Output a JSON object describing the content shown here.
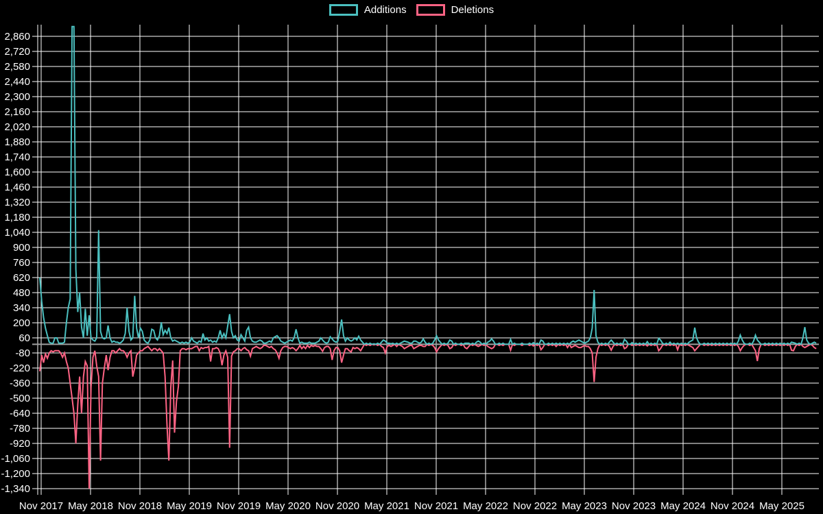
{
  "chart_data": {
    "type": "line",
    "title": "",
    "legend": [
      {
        "label": "Additions",
        "color": "#4bc0c0"
      },
      {
        "label": "Deletions",
        "color": "#ff6384"
      }
    ],
    "background_color": "#000000",
    "grid_color": "#ffffff",
    "zero_line_color": "#a0a0a0",
    "text_color": "#ffffff",
    "y_axis": {
      "min": -1340,
      "max": 2860,
      "step": 140
    },
    "y_tick_labels": [
      "2,860",
      "2,720",
      "2,580",
      "2,440",
      "2,300",
      "2,160",
      "2,020",
      "1,880",
      "1,740",
      "1,600",
      "1,460",
      "1,320",
      "1,180",
      "1,040",
      "900",
      "760",
      "620",
      "480",
      "340",
      "200",
      "60",
      "-80",
      "-220",
      "-360",
      "-500",
      "-640",
      "-780",
      "-920",
      "-1,060",
      "-1,200",
      "-1,340"
    ],
    "x_tick_labels": [
      "Nov 2017",
      "May 2018",
      "Nov 2018",
      "May 2019",
      "Nov 2019",
      "May 2020",
      "Nov 2020",
      "May 2021",
      "Nov 2021",
      "May 2022",
      "Nov 2022",
      "May 2023",
      "Nov 2023",
      "May 2024",
      "Nov 2024",
      "May 2025"
    ],
    "x_unit": "week",
    "weeks_total": 410,
    "points_format": "[week_index, additions, deletions]",
    "points": [
      [
        0,
        620,
        -250
      ],
      [
        1,
        400,
        -100
      ],
      [
        2,
        250,
        -170
      ],
      [
        3,
        150,
        -90
      ],
      [
        4,
        80,
        -130
      ],
      [
        5,
        20,
        -80
      ],
      [
        6,
        10,
        -60
      ],
      [
        7,
        10,
        -70
      ],
      [
        8,
        60,
        -60
      ],
      [
        9,
        60,
        -60
      ],
      [
        10,
        10,
        -60
      ],
      [
        11,
        10,
        -80
      ],
      [
        12,
        10,
        -120
      ],
      [
        13,
        20,
        -80
      ],
      [
        14,
        200,
        -160
      ],
      [
        15,
        340,
        -220
      ],
      [
        16,
        420,
        -360
      ],
      [
        17,
        2950,
        -500
      ],
      [
        18,
        2950,
        -640
      ],
      [
        19,
        700,
        -920
      ],
      [
        20,
        300,
        -560
      ],
      [
        21,
        480,
        -300
      ],
      [
        22,
        160,
        -640
      ],
      [
        23,
        60,
        -300
      ],
      [
        24,
        330,
        -160
      ],
      [
        25,
        80,
        -200
      ],
      [
        26,
        270,
        -1340
      ],
      [
        27,
        60,
        -400
      ],
      [
        28,
        40,
        -120
      ],
      [
        29,
        30,
        -60
      ],
      [
        30,
        60,
        -200
      ],
      [
        31,
        1060,
        -300
      ],
      [
        32,
        120,
        -1080
      ],
      [
        33,
        60,
        -360
      ],
      [
        34,
        50,
        -220
      ],
      [
        35,
        60,
        -100
      ],
      [
        36,
        175,
        -240
      ],
      [
        37,
        60,
        -120
      ],
      [
        38,
        20,
        -60
      ],
      [
        39,
        30,
        -60
      ],
      [
        40,
        20,
        -80
      ],
      [
        41,
        20,
        -60
      ],
      [
        42,
        10,
        -40
      ],
      [
        43,
        20,
        -60
      ],
      [
        44,
        40,
        -60
      ],
      [
        45,
        100,
        -80
      ],
      [
        46,
        340,
        -120
      ],
      [
        47,
        120,
        -80
      ],
      [
        48,
        40,
        -60
      ],
      [
        49,
        60,
        -300
      ],
      [
        50,
        450,
        -220
      ],
      [
        51,
        150,
        -100
      ],
      [
        52,
        60,
        -80
      ],
      [
        53,
        150,
        -60
      ],
      [
        54,
        120,
        -60
      ],
      [
        55,
        40,
        -40
      ],
      [
        56,
        20,
        -30
      ],
      [
        57,
        10,
        -20
      ],
      [
        58,
        40,
        -40
      ],
      [
        59,
        140,
        -60
      ],
      [
        60,
        130,
        -40
      ],
      [
        61,
        60,
        -40
      ],
      [
        62,
        40,
        -60
      ],
      [
        63,
        80,
        -40
      ],
      [
        64,
        205,
        -60
      ],
      [
        65,
        90,
        -80
      ],
      [
        66,
        130,
        -300
      ],
      [
        67,
        100,
        -750
      ],
      [
        68,
        155,
        -1080
      ],
      [
        69,
        60,
        -400
      ],
      [
        70,
        30,
        -150
      ],
      [
        71,
        40,
        -820
      ],
      [
        72,
        30,
        -530
      ],
      [
        73,
        20,
        -390
      ],
      [
        74,
        10,
        -60
      ],
      [
        75,
        20,
        -40
      ],
      [
        76,
        10,
        -40
      ],
      [
        77,
        20,
        -50
      ],
      [
        78,
        10,
        -40
      ],
      [
        79,
        20,
        -40
      ],
      [
        80,
        60,
        -40
      ],
      [
        81,
        30,
        -30
      ],
      [
        82,
        20,
        -20
      ],
      [
        83,
        10,
        -20
      ],
      [
        84,
        30,
        -60
      ],
      [
        85,
        20,
        -30
      ],
      [
        86,
        100,
        -40
      ],
      [
        87,
        40,
        -30
      ],
      [
        88,
        60,
        -30
      ],
      [
        89,
        30,
        -20
      ],
      [
        90,
        40,
        -160
      ],
      [
        91,
        20,
        -40
      ],
      [
        92,
        30,
        -40
      ],
      [
        93,
        20,
        -30
      ],
      [
        94,
        60,
        -40
      ],
      [
        95,
        130,
        -80
      ],
      [
        96,
        60,
        -195
      ],
      [
        97,
        100,
        -100
      ],
      [
        98,
        60,
        -60
      ],
      [
        99,
        170,
        -120
      ],
      [
        100,
        280,
        -960
      ],
      [
        101,
        120,
        -110
      ],
      [
        102,
        60,
        -70
      ],
      [
        103,
        80,
        -60
      ],
      [
        104,
        40,
        -40
      ],
      [
        105,
        30,
        -40
      ],
      [
        106,
        90,
        -60
      ],
      [
        107,
        60,
        -40
      ],
      [
        108,
        30,
        -30
      ],
      [
        109,
        130,
        -50
      ],
      [
        110,
        160,
        -60
      ],
      [
        111,
        60,
        -110
      ],
      [
        112,
        30,
        -40
      ],
      [
        113,
        20,
        -30
      ],
      [
        114,
        20,
        -20
      ],
      [
        115,
        30,
        -30
      ],
      [
        116,
        40,
        -40
      ],
      [
        117,
        30,
        -30
      ],
      [
        118,
        10,
        -10
      ],
      [
        119,
        10,
        -10
      ],
      [
        120,
        20,
        -20
      ],
      [
        121,
        30,
        -30
      ],
      [
        122,
        20,
        -20
      ],
      [
        123,
        60,
        -40
      ],
      [
        124,
        70,
        -50
      ],
      [
        125,
        80,
        -80
      ],
      [
        126,
        60,
        -130
      ],
      [
        127,
        30,
        -60
      ],
      [
        128,
        20,
        -30
      ],
      [
        129,
        10,
        -20
      ],
      [
        130,
        20,
        -20
      ],
      [
        131,
        30,
        -30
      ],
      [
        132,
        40,
        -40
      ],
      [
        133,
        30,
        -30
      ],
      [
        134,
        60,
        -40
      ],
      [
        135,
        140,
        -60
      ],
      [
        136,
        60,
        -40
      ],
      [
        137,
        10,
        -10
      ],
      [
        138,
        20,
        -40
      ],
      [
        139,
        10,
        -20
      ],
      [
        140,
        10,
        -40
      ],
      [
        141,
        10,
        -10
      ],
      [
        142,
        20,
        -30
      ],
      [
        143,
        10,
        -10
      ],
      [
        144,
        10,
        -20
      ],
      [
        145,
        10,
        -10
      ],
      [
        146,
        20,
        -20
      ],
      [
        147,
        30,
        -20
      ],
      [
        148,
        60,
        -40
      ],
      [
        149,
        40,
        -65
      ],
      [
        150,
        20,
        -30
      ],
      [
        151,
        10,
        -20
      ],
      [
        152,
        20,
        -20
      ],
      [
        153,
        70,
        -40
      ],
      [
        154,
        50,
        -145
      ],
      [
        155,
        30,
        -60
      ],
      [
        156,
        20,
        -30
      ],
      [
        157,
        30,
        -30
      ],
      [
        158,
        120,
        -60
      ],
      [
        159,
        230,
        -170
      ],
      [
        160,
        80,
        -100
      ],
      [
        161,
        30,
        -40
      ],
      [
        162,
        60,
        -40
      ],
      [
        163,
        40,
        -60
      ],
      [
        164,
        30,
        -70
      ],
      [
        165,
        40,
        -30
      ],
      [
        166,
        60,
        -40
      ],
      [
        167,
        40,
        -30
      ],
      [
        168,
        75,
        -40
      ],
      [
        169,
        40,
        -60
      ],
      [
        170,
        20,
        -30
      ],
      [
        172,
        10,
        -10
      ],
      [
        174,
        10,
        -10
      ],
      [
        176,
        5,
        -5
      ],
      [
        178,
        10,
        -10
      ],
      [
        180,
        20,
        -20
      ],
      [
        181,
        40,
        -30
      ],
      [
        182,
        30,
        -80
      ],
      [
        183,
        10,
        -20
      ],
      [
        184,
        10,
        -10
      ],
      [
        185,
        5,
        -20
      ],
      [
        186,
        10,
        -10
      ],
      [
        188,
        10,
        -20
      ],
      [
        190,
        10,
        -10
      ],
      [
        191,
        20,
        -20
      ],
      [
        192,
        30,
        -40
      ],
      [
        193,
        25,
        -30
      ],
      [
        194,
        20,
        -20
      ],
      [
        195,
        10,
        -10
      ],
      [
        196,
        10,
        -10
      ],
      [
        197,
        30,
        -40
      ],
      [
        198,
        30,
        -30
      ],
      [
        199,
        20,
        -20
      ],
      [
        200,
        10,
        -10
      ],
      [
        201,
        20,
        -10
      ],
      [
        202,
        50,
        -20
      ],
      [
        203,
        20,
        -20
      ],
      [
        205,
        10,
        -10
      ],
      [
        207,
        10,
        -10
      ],
      [
        208,
        40,
        -30
      ],
      [
        209,
        80,
        -70
      ],
      [
        210,
        40,
        -40
      ],
      [
        211,
        20,
        -20
      ],
      [
        213,
        10,
        -10
      ],
      [
        215,
        10,
        -10
      ],
      [
        216,
        40,
        -40
      ],
      [
        217,
        30,
        -30
      ],
      [
        219,
        10,
        -10
      ],
      [
        222,
        10,
        -10
      ],
      [
        224,
        10,
        -30
      ],
      [
        225,
        10,
        -40
      ],
      [
        226,
        10,
        -20
      ],
      [
        228,
        10,
        -10
      ],
      [
        230,
        20,
        -10
      ],
      [
        231,
        30,
        -20
      ],
      [
        232,
        20,
        -10
      ],
      [
        234,
        10,
        -10
      ],
      [
        236,
        20,
        -20
      ],
      [
        237,
        30,
        -30
      ],
      [
        238,
        50,
        -40
      ],
      [
        239,
        30,
        -30
      ],
      [
        242,
        10,
        -10
      ],
      [
        244,
        10,
        -10
      ],
      [
        248,
        45,
        -55
      ],
      [
        250,
        10,
        -10
      ],
      [
        254,
        10,
        -10
      ],
      [
        258,
        10,
        -10
      ],
      [
        260,
        15,
        -15
      ],
      [
        262,
        10,
        -10
      ],
      [
        264,
        40,
        -50
      ],
      [
        265,
        30,
        -30
      ],
      [
        268,
        10,
        -10
      ],
      [
        270,
        10,
        -10
      ],
      [
        272,
        10,
        -20
      ],
      [
        274,
        10,
        -10
      ],
      [
        276,
        10,
        -10
      ],
      [
        278,
        10,
        -30
      ],
      [
        280,
        20,
        -30
      ],
      [
        281,
        30,
        -20
      ],
      [
        282,
        20,
        -10
      ],
      [
        283,
        30,
        -20
      ],
      [
        284,
        40,
        -30
      ],
      [
        285,
        30,
        -30
      ],
      [
        286,
        20,
        -20
      ],
      [
        287,
        10,
        -10
      ],
      [
        288,
        20,
        -20
      ],
      [
        289,
        30,
        -20
      ],
      [
        290,
        60,
        -40
      ],
      [
        291,
        150,
        -80
      ],
      [
        292,
        505,
        -350
      ],
      [
        293,
        80,
        -120
      ],
      [
        294,
        20,
        -40
      ],
      [
        296,
        10,
        -10
      ],
      [
        298,
        10,
        -10
      ],
      [
        300,
        20,
        -20
      ],
      [
        301,
        40,
        -55
      ],
      [
        302,
        20,
        -20
      ],
      [
        304,
        10,
        -10
      ],
      [
        306,
        10,
        -10
      ],
      [
        308,
        45,
        -40
      ],
      [
        309,
        30,
        -30
      ],
      [
        312,
        15,
        -10
      ],
      [
        314,
        10,
        -10
      ],
      [
        316,
        10,
        -10
      ],
      [
        318,
        10,
        -10
      ],
      [
        320,
        25,
        -15
      ],
      [
        322,
        10,
        -10
      ],
      [
        324,
        10,
        -10
      ],
      [
        326,
        55,
        -60
      ],
      [
        327,
        40,
        -40
      ],
      [
        328,
        10,
        -10
      ],
      [
        330,
        10,
        -10
      ],
      [
        332,
        20,
        -10
      ],
      [
        334,
        10,
        -10
      ],
      [
        336,
        10,
        -50
      ],
      [
        338,
        10,
        -10
      ],
      [
        340,
        10,
        -10
      ],
      [
        342,
        20,
        -10
      ],
      [
        343,
        30,
        -20
      ],
      [
        344,
        40,
        -30
      ],
      [
        345,
        155,
        -60
      ],
      [
        346,
        60,
        -40
      ],
      [
        347,
        20,
        -20
      ],
      [
        350,
        10,
        -10
      ],
      [
        352,
        10,
        -10
      ],
      [
        354,
        10,
        -10
      ],
      [
        356,
        10,
        -10
      ],
      [
        358,
        10,
        -10
      ],
      [
        360,
        10,
        -10
      ],
      [
        362,
        10,
        -10
      ],
      [
        364,
        10,
        -10
      ],
      [
        366,
        10,
        -10
      ],
      [
        368,
        30,
        -20
      ],
      [
        369,
        85,
        -60
      ],
      [
        370,
        40,
        -30
      ],
      [
        371,
        10,
        -10
      ],
      [
        374,
        10,
        -10
      ],
      [
        376,
        30,
        -30
      ],
      [
        377,
        85,
        -60
      ],
      [
        378,
        40,
        -155
      ],
      [
        379,
        20,
        -40
      ],
      [
        382,
        10,
        -10
      ],
      [
        384,
        10,
        -10
      ],
      [
        386,
        10,
        -10
      ],
      [
        388,
        10,
        -10
      ],
      [
        390,
        10,
        -10
      ],
      [
        392,
        10,
        -10
      ],
      [
        394,
        10,
        -10
      ],
      [
        396,
        20,
        -55
      ],
      [
        397,
        15,
        -60
      ],
      [
        398,
        10,
        -20
      ],
      [
        400,
        10,
        -10
      ],
      [
        402,
        60,
        -20
      ],
      [
        403,
        160,
        -30
      ],
      [
        404,
        40,
        -20
      ],
      [
        405,
        10,
        -10
      ],
      [
        407,
        10,
        -10
      ],
      [
        408,
        20,
        -30
      ],
      [
        409,
        10,
        -40
      ]
    ]
  }
}
